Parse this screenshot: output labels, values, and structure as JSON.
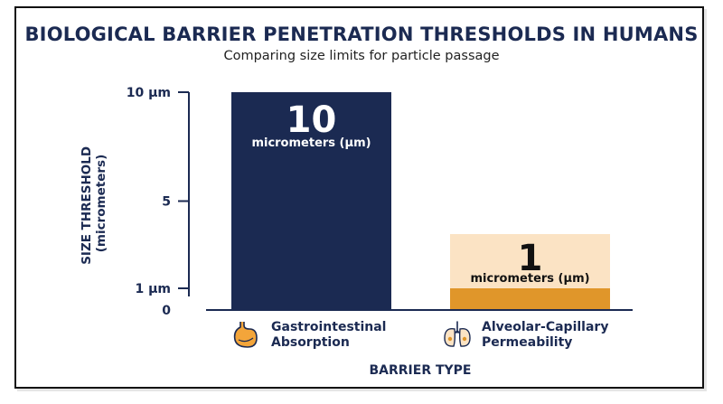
{
  "chart_data": {
    "type": "bar",
    "title": "BIOLOGICAL BARRIER PENETRATION THRESHOLDS IN HUMANS",
    "subtitle": "Comparing size limits for particle passage",
    "ylabel_line1": "SIZE THRESHOLD",
    "ylabel_line2": "(micrometers)",
    "xlabel": "BARRIER TYPE",
    "ylim": [
      0,
      10
    ],
    "yticks": [
      {
        "value": 0,
        "label": "0"
      },
      {
        "value": 1,
        "label": "1 µm"
      },
      {
        "value": 5,
        "label": "5"
      },
      {
        "value": 10,
        "label": "10 µm"
      }
    ],
    "categories": [
      {
        "line1": "Gastrointestinal",
        "line2": "Absorption",
        "icon": "stomach-icon"
      },
      {
        "line1": "Alveolar-Capillary",
        "line2": "Permeability",
        "icon": "lungs-icon"
      }
    ],
    "values": [
      10,
      1
    ],
    "data_labels": [
      {
        "value_text": "10",
        "unit_text": "micrometers (µm)"
      },
      {
        "value_text": "1",
        "unit_text": "micrometers (µm)"
      }
    ],
    "colors": {
      "bar1": "#1b2a52",
      "bar2_fill": "#e0962a",
      "bar2_highlight": "#fbe3c4",
      "axis": "#1b2a52"
    }
  }
}
